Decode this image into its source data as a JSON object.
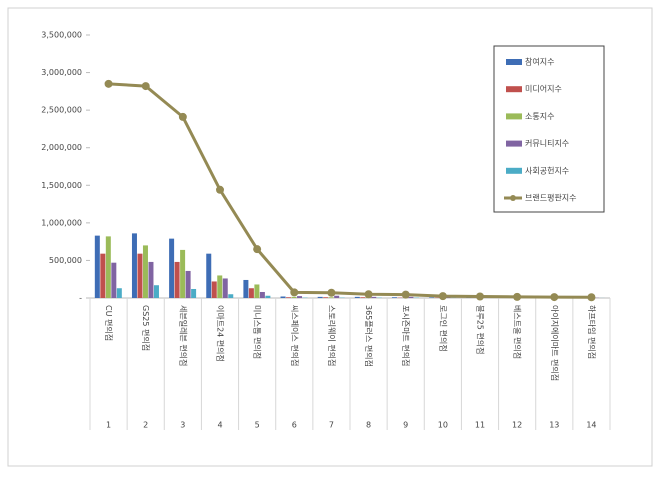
{
  "chart_data": {
    "type": "bar",
    "categories": [
      "CU 편의점",
      "GS25 편의점",
      "세븐일레븐 편의점",
      "이마트24 편의점",
      "미니스톱 편의점",
      "씨스페이스 편의점",
      "스토리웨이 편의점",
      "365플러스 편의점",
      "포시즌마트 편의점",
      "로그인 편의점",
      "블루25 편의점",
      "베스트올 편의점",
      "아이지에이마트 편의점",
      "하프타임 편의점"
    ],
    "ranks": [
      1,
      2,
      3,
      4,
      5,
      6,
      7,
      8,
      9,
      10,
      11,
      12,
      13,
      14
    ],
    "series": [
      {
        "name": "참여지수",
        "type": "bar",
        "color": "#3e6db5",
        "values": [
          830000,
          860000,
          790000,
          590000,
          240000,
          20000,
          15000,
          15000,
          10000,
          8000,
          6000,
          5000,
          4000,
          3000
        ]
      },
      {
        "name": "미디어지수",
        "type": "bar",
        "color": "#c0504d",
        "values": [
          590000,
          590000,
          480000,
          220000,
          130000,
          10000,
          10000,
          10000,
          5000,
          4000,
          3000,
          3000,
          2000,
          2000
        ]
      },
      {
        "name": "소통지수",
        "type": "bar",
        "color": "#9bbb59",
        "values": [
          820000,
          700000,
          640000,
          300000,
          180000,
          15000,
          10000,
          10000,
          10000,
          5000,
          4000,
          3000,
          3000,
          2000
        ]
      },
      {
        "name": "커뮤니티지수",
        "type": "bar",
        "color": "#8064a2",
        "values": [
          470000,
          480000,
          360000,
          260000,
          80000,
          25000,
          30000,
          15000,
          15000,
          8000,
          6000,
          5000,
          4000,
          3000
        ]
      },
      {
        "name": "사회공헌지수",
        "type": "bar",
        "color": "#4bacc6",
        "values": [
          130000,
          170000,
          120000,
          50000,
          30000,
          5000,
          5000,
          5000,
          5000,
          3000,
          2000,
          2000,
          1000,
          1000
        ]
      },
      {
        "name": "브랜드평판지수",
        "type": "line",
        "color": "#948a54",
        "values": [
          2850000,
          2820000,
          2410000,
          1440000,
          650000,
          75000,
          70000,
          50000,
          45000,
          25000,
          20000,
          15000,
          12000,
          10000
        ]
      }
    ],
    "ylim": [
      0,
      3500000
    ],
    "yticks": [
      {
        "value": 0,
        "label": "-"
      },
      {
        "value": 500000,
        "label": "500,000"
      },
      {
        "value": 1000000,
        "label": "1,000,000"
      },
      {
        "value": 1500000,
        "label": "1,500,000"
      },
      {
        "value": 2000000,
        "label": "2,000,000"
      },
      {
        "value": 2500000,
        "label": "2,500,000"
      },
      {
        "value": 3000000,
        "label": "3,000,000"
      },
      {
        "value": 3500000,
        "label": "3,500,000"
      }
    ],
    "legend": "top-right"
  }
}
